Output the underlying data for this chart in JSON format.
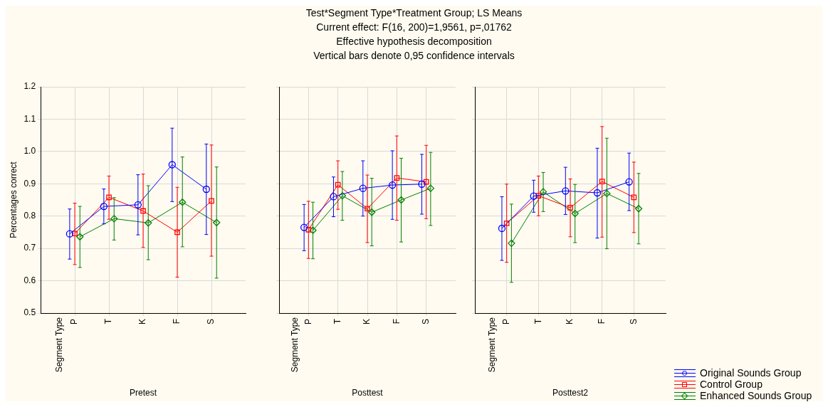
{
  "chart_data": [
    {
      "type": "line",
      "categories": [
        "P",
        "T",
        "K",
        "F",
        "S"
      ],
      "xlabel": "Pretest",
      "ylabel": "Percentages correct",
      "annotations": [
        "Segment Type"
      ],
      "ylim": [
        0.5,
        1.2
      ],
      "yticks": [
        {
          "value": 0.5,
          "label": "0.5"
        },
        {
          "value": 0.6,
          "label": "0.6"
        },
        {
          "value": 0.7,
          "label": "0.7"
        },
        {
          "value": 0.8,
          "label": "0.8"
        },
        {
          "value": 0.9,
          "label": "0.9"
        },
        {
          "value": 1.0,
          "label": "1.0"
        },
        {
          "value": 1.1,
          "label": "1.1"
        },
        {
          "value": 1.2,
          "label": "1.2"
        }
      ],
      "grid": true,
      "series": [
        {
          "color": "#0000ff",
          "marker": "circle",
          "values": [
            0.745,
            0.83,
            0.835,
            0.959,
            0.883
          ],
          "errors": [
            [
              0.667,
              0.822
            ],
            [
              0.776,
              0.884
            ],
            [
              0.742,
              0.928
            ],
            [
              0.845,
              1.072
            ],
            [
              0.743,
              1.023
            ]
          ]
        },
        {
          "color": "#ff0000",
          "marker": "square",
          "values": [
            0.746,
            0.858,
            0.816,
            0.75,
            0.847
          ],
          "errors": [
            [
              0.65,
              0.84
            ],
            [
              0.79,
              0.924
            ],
            [
              0.703,
              0.93
            ],
            [
              0.611,
              0.889
            ],
            [
              0.676,
              1.02
            ]
          ]
        },
        {
          "color": "#008000",
          "marker": "diamond",
          "values": [
            0.736,
            0.792,
            0.779,
            0.843,
            0.78
          ],
          "errors": [
            [
              0.641,
              0.83
            ],
            [
              0.726,
              0.857
            ],
            [
              0.665,
              0.894
            ],
            [
              0.705,
              0.983
            ],
            [
              0.608,
              0.952
            ]
          ]
        }
      ]
    },
    {
      "type": "line",
      "title": "Test*Segment Type*Treatment Group; LS Means",
      "subtitle": "Current effect: F(16, 200)=1,9561, p=,01762\nEffective hypothesis decomposition\nVertical bars denote 0,95 confidence intervals",
      "categories": [
        "P",
        "T",
        "K",
        "F",
        "S"
      ],
      "xlabel": "Posttest",
      "annotations": [
        "Segment Type"
      ],
      "ylim": [
        0.5,
        1.2
      ],
      "yticks": [
        0.5,
        0.6,
        0.7,
        0.8,
        0.9,
        1.0,
        1.1,
        1.2
      ],
      "tick_labels": "x",
      "grid": true,
      "series": [
        {
          "color": "#0000ff",
          "marker": "circle",
          "values": [
            0.765,
            0.86,
            0.886,
            0.896,
            0.899
          ],
          "errors": [
            [
              0.693,
              0.836
            ],
            [
              0.798,
              0.921
            ],
            [
              0.8,
              0.971
            ],
            [
              0.79,
              1.002
            ],
            [
              0.806,
              0.991
            ]
          ]
        },
        {
          "color": "#ff0000",
          "marker": "square",
          "values": [
            0.758,
            0.897,
            0.823,
            0.918,
            0.906
          ],
          "errors": [
            [
              0.669,
              0.846
            ],
            [
              0.821,
              0.971
            ],
            [
              0.718,
              0.927
            ],
            [
              0.787,
              1.048
            ],
            [
              0.792,
              1.019
            ]
          ]
        },
        {
          "color": "#008000",
          "marker": "diamond",
          "values": [
            0.756,
            0.863,
            0.812,
            0.85,
            0.886
          ],
          "errors": [
            [
              0.668,
              0.843
            ],
            [
              0.787,
              0.938
            ],
            [
              0.708,
              0.917
            ],
            [
              0.72,
              0.979
            ],
            [
              0.771,
              0.997
            ]
          ]
        }
      ]
    },
    {
      "type": "line",
      "categories": [
        "P",
        "T",
        "K",
        "F",
        "S"
      ],
      "xlabel": "Posttest2",
      "annotations": [
        "Segment Type"
      ],
      "ylim": [
        0.5,
        1.2
      ],
      "yticks": [
        0.5,
        0.6,
        0.7,
        0.8,
        0.9,
        1.0,
        1.1,
        1.2
      ],
      "tick_labels": "x",
      "grid": true,
      "legend": "bottom right",
      "series": [
        {
          "name": "Original Sounds Group",
          "color": "#0000ff",
          "marker": "circle",
          "values": [
            0.762,
            0.862,
            0.878,
            0.872,
            0.906
          ],
          "errors": [
            [
              0.663,
              0.86
            ],
            [
              0.812,
              0.911
            ],
            [
              0.805,
              0.951
            ],
            [
              0.732,
              1.01
            ],
            [
              0.817,
              0.995
            ]
          ]
        },
        {
          "name": "Control Group",
          "color": "#ff0000",
          "marker": "square",
          "values": [
            0.778,
            0.863,
            0.826,
            0.907,
            0.858
          ],
          "errors": [
            [
              0.657,
              0.899
            ],
            [
              0.801,
              0.924
            ],
            [
              0.736,
              0.915
            ],
            [
              0.735,
              1.077
            ],
            [
              0.749,
              0.967
            ]
          ]
        },
        {
          "name": "Enhanced Sounds Group",
          "color": "#008000",
          "marker": "diamond",
          "values": [
            0.716,
            0.875,
            0.808,
            0.87,
            0.823
          ],
          "errors": [
            [
              0.595,
              0.837
            ],
            [
              0.814,
              0.935
            ],
            [
              0.718,
              0.898
            ],
            [
              0.699,
              1.041
            ],
            [
              0.714,
              0.932
            ]
          ]
        }
      ]
    }
  ]
}
